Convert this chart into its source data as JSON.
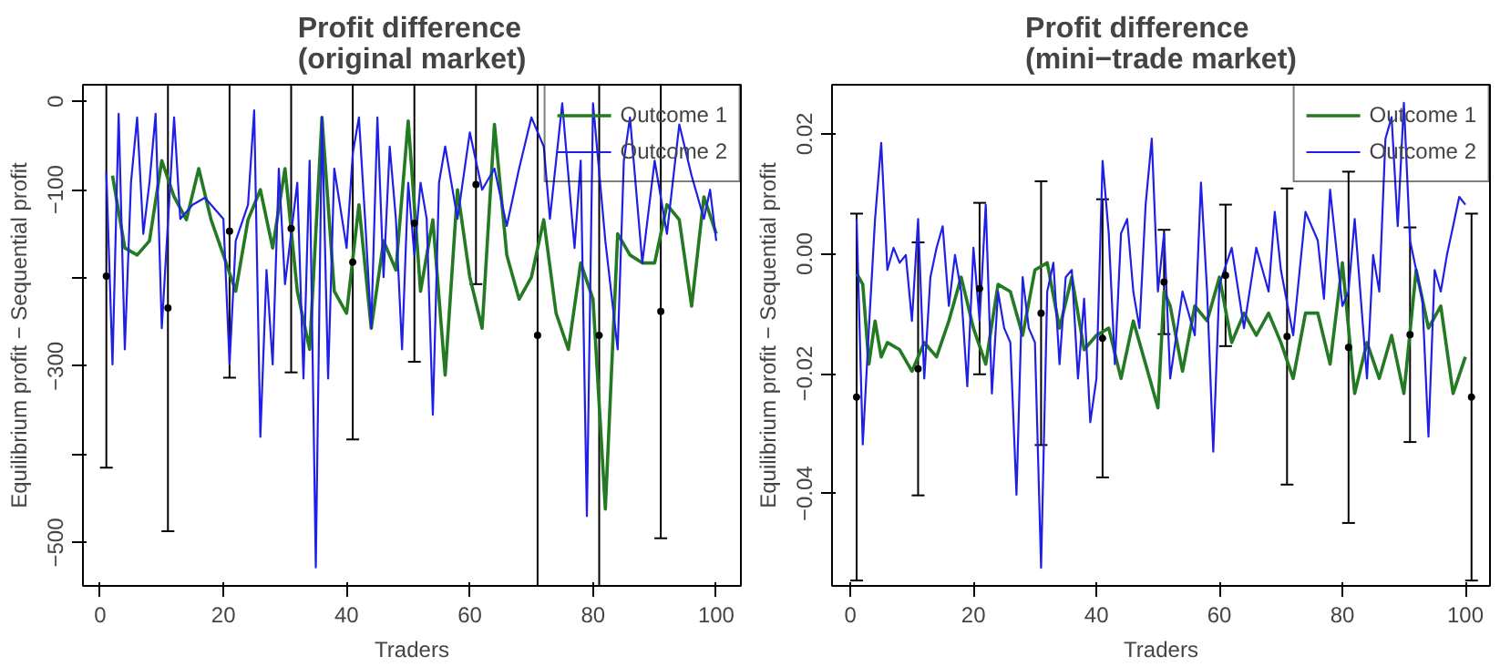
{
  "chart_data": [
    {
      "type": "line",
      "title": "Profit difference\n(original market)",
      "xlabel": "Traders",
      "ylabel": "Equilibrium profit − Sequential profit",
      "xlim": [
        -2.8,
        104
      ],
      "ylim": [
        -549,
        19
      ],
      "xticks": [
        0,
        20,
        40,
        60,
        80,
        100
      ],
      "yticks": [
        {
          "value": -500,
          "label": "−500"
        },
        {
          "value": -400,
          "label": null
        },
        {
          "value": -300,
          "label": "−300"
        },
        {
          "value": -200,
          "label": null
        },
        {
          "value": -100,
          "label": "−100"
        },
        0
      ],
      "legend": "top right",
      "grid": false,
      "series": [
        {
          "name": "Outcome 1",
          "color": "#237a23",
          "x": [
            2,
            4,
            6,
            8,
            10,
            12,
            14,
            16,
            18,
            20,
            22,
            24,
            26,
            28,
            30,
            32,
            34,
            36,
            38,
            40,
            42,
            44,
            46,
            48,
            50,
            52,
            54,
            56,
            58,
            60,
            62,
            64,
            66,
            68,
            70,
            72,
            74,
            76,
            78,
            80,
            82,
            84,
            86,
            88,
            90,
            92,
            94,
            96,
            98,
            100
          ],
          "values": [
            -84,
            -166,
            -174,
            -158,
            -67,
            -108,
            -134,
            -76,
            -134,
            -174,
            -215,
            -134,
            -100,
            -166,
            -76,
            -215,
            -281,
            -18,
            -215,
            -240,
            -117,
            -257,
            -158,
            -191,
            -22,
            -215,
            -134,
            -310,
            -100,
            -199,
            -257,
            -26,
            -174,
            -224,
            -199,
            -134,
            -240,
            -281,
            -183,
            -224,
            -462,
            -150,
            -174,
            -183,
            -183,
            -117,
            -134,
            -232,
            -108,
            -150
          ]
        },
        {
          "name": "Outcome 2",
          "color": "#1f1fe6",
          "x": [
            1,
            2,
            3,
            4,
            5,
            6,
            7,
            8,
            9,
            10,
            12,
            13,
            15,
            17,
            20,
            21,
            22,
            24,
            25,
            26,
            27,
            28,
            29,
            30,
            32,
            33,
            34,
            35,
            36,
            37,
            38,
            40,
            41,
            42,
            43,
            44,
            45,
            46,
            47,
            48,
            49,
            50,
            51,
            52,
            53,
            54,
            55,
            56,
            58,
            60,
            62,
            64,
            66,
            68,
            70,
            72,
            73,
            75,
            77,
            78,
            79,
            80,
            82,
            84,
            85,
            86,
            88,
            90,
            92,
            94,
            96,
            98,
            99,
            100
          ],
          "values": [
            -80,
            -298,
            -14,
            -281,
            -92,
            -18,
            -150,
            -92,
            -14,
            -257,
            -18,
            -133,
            -117,
            -109,
            -133,
            -298,
            -158,
            -117,
            -10,
            -380,
            -191,
            -298,
            -76,
            -207,
            -92,
            -314,
            -67,
            -528,
            -18,
            -314,
            -76,
            -166,
            -59,
            -18,
            -133,
            -257,
            -18,
            -199,
            -51,
            -133,
            -281,
            -92,
            -174,
            -92,
            -133,
            -355,
            -92,
            -51,
            -133,
            -35,
            -100,
            -76,
            -141,
            -76,
            -18,
            -51,
            -133,
            -2,
            -166,
            -67,
            -470,
            -2,
            -158,
            -281,
            -67,
            -18,
            -183,
            -67,
            -150,
            -26,
            -84,
            -133,
            -100,
            -158
          ]
        },
        {
          "color": "#000000",
          "type": "scatter",
          "marker": "circle",
          "x": [
            1,
            11,
            21,
            31,
            41,
            51,
            61,
            71,
            81,
            91
          ],
          "values": [
            -198,
            -234,
            -147,
            -144,
            -182,
            -138,
            -94,
            -265,
            -265,
            -238
          ],
          "errors": [
            217,
            253,
            166,
            163,
            201,
            157,
            113,
            284,
            284,
            257
          ]
        }
      ]
    },
    {
      "type": "line",
      "title": "Profit difference\n(mini−trade market)",
      "xlabel": "Traders",
      "ylabel": "Equilibrium profit − Sequential profit",
      "xlim": [
        -3,
        104
      ],
      "ylim": [
        -0.0554,
        0.0282
      ],
      "xticks": [
        0,
        20,
        40,
        60,
        80,
        100
      ],
      "yticks": [
        {
          "value": -0.04,
          "label": "−0.04"
        },
        {
          "value": -0.02,
          "label": "−0.02"
        },
        {
          "value": 0,
          "label": "0.00"
        },
        {
          "value": 0.02,
          "label": "0.02"
        }
      ],
      "legend": "top right",
      "grid": false,
      "series": [
        {
          "name": "Outcome 1",
          "color": "#237a23",
          "x": [
            1,
            2,
            3,
            4,
            5,
            6,
            8,
            10,
            12,
            14,
            16,
            18,
            20,
            22,
            24,
            26,
            28,
            30,
            32,
            34,
            36,
            38,
            40,
            42,
            44,
            46,
            48,
            50,
            51,
            52,
            54,
            56,
            58,
            60,
            62,
            64,
            66,
            68,
            70,
            72,
            74,
            76,
            78,
            80,
            82,
            84,
            86,
            88,
            90,
            92,
            94,
            96,
            98,
            100
          ],
          "values": [
            -0.0033,
            -0.0051,
            -0.0184,
            -0.0112,
            -0.0172,
            -0.0148,
            -0.016,
            -0.0196,
            -0.0148,
            -0.0172,
            -0.0112,
            -0.0039,
            -0.0124,
            -0.0184,
            -0.0051,
            -0.0063,
            -0.0136,
            -0.0027,
            -0.0015,
            -0.0124,
            -0.0039,
            -0.016,
            -0.0136,
            -0.0124,
            -0.0208,
            -0.0112,
            -0.0184,
            -0.0257,
            -0.0063,
            -0.0087,
            -0.0196,
            -0.0087,
            -0.0112,
            -0.0039,
            -0.0148,
            -0.0099,
            -0.0136,
            -0.0099,
            -0.0148,
            -0.0208,
            -0.0099,
            -0.0099,
            -0.0184,
            -0.0015,
            -0.0233,
            -0.0148,
            -0.0208,
            -0.0136,
            -0.0233,
            -0.0027,
            -0.0124,
            -0.0087,
            -0.0233,
            -0.0172
          ]
        },
        {
          "name": "Outcome 2",
          "color": "#1f1fe6",
          "x": [
            1,
            2,
            3,
            4,
            5,
            6,
            7,
            8,
            9,
            10,
            11,
            12,
            13,
            14,
            15,
            16,
            17,
            18,
            19,
            20,
            21,
            22,
            23,
            24,
            25,
            26,
            27,
            28,
            29,
            30,
            31,
            32,
            33,
            34,
            35,
            36,
            37,
            38,
            39,
            40,
            41,
            42,
            43,
            44,
            45,
            46,
            47,
            48,
            49,
            50,
            51,
            52,
            54,
            56,
            57,
            58,
            59,
            60,
            62,
            64,
            66,
            68,
            69,
            70,
            72,
            74,
            76,
            77,
            78,
            80,
            81,
            82,
            84,
            85,
            86,
            87,
            88,
            89,
            90,
            91,
            92,
            93,
            94,
            95,
            96,
            97,
            98,
            99,
            100
          ],
          "values": [
            0.0058,
            -0.0318,
            -0.0124,
            0.0058,
            0.0185,
            -0.0027,
            0.001,
            -0.0015,
            -0.0002,
            -0.0112,
            0.0058,
            -0.0208,
            -0.0039,
            0.001,
            0.0046,
            -0.0087,
            -0.0002,
            -0.0063,
            -0.0221,
            0.001,
            -0.0112,
            0.0082,
            -0.0233,
            -0.0063,
            -0.0124,
            -0.0148,
            -0.0402,
            -0.0039,
            -0.0124,
            -0.0148,
            -0.0524,
            -0.0063,
            -0.0015,
            -0.0184,
            -0.0039,
            -0.0027,
            -0.0208,
            -0.0075,
            -0.0281,
            -0.0208,
            0.0155,
            0.0034,
            -0.0184,
            0.0034,
            0.0058,
            -0.0063,
            -0.0124,
            0.0082,
            0.0192,
            -0.0063,
            0.0034,
            -0.0208,
            -0.0063,
            -0.0136,
            0.0119,
            -0.0063,
            -0.033,
            -0.0051,
            0.001,
            -0.0124,
            0.001,
            -0.0063,
            0.007,
            -0.0027,
            -0.0136,
            0.007,
            0.0022,
            -0.0075,
            0.0107,
            -0.0087,
            -0.0063,
            0.0058,
            -0.0208,
            -0.0002,
            -0.0063,
            0.0192,
            0.0228,
            0.0046,
            0.0252,
            0.0022,
            -0.0027,
            -0.0075,
            -0.0305,
            -0.0027,
            -0.0063,
            -0.0002,
            0.0046,
            0.0095,
            0.0082
          ]
        },
        {
          "color": "#000000",
          "type": "scatter",
          "marker": "circle",
          "x": [
            1,
            11,
            21,
            31,
            41,
            51,
            61,
            71,
            81,
            91,
            101
          ],
          "values": [
            -0.0239,
            -0.0192,
            -0.0058,
            -0.0099,
            -0.0141,
            -0.0047,
            -0.0036,
            -0.0138,
            -0.0156,
            -0.0135,
            -0.0239
          ],
          "errors": [
            0.0306,
            0.0211,
            0.0143,
            0.022,
            0.0232,
            0.0087,
            0.0118,
            0.0247,
            0.0293,
            0.0179,
            0.0306
          ]
        }
      ]
    }
  ]
}
